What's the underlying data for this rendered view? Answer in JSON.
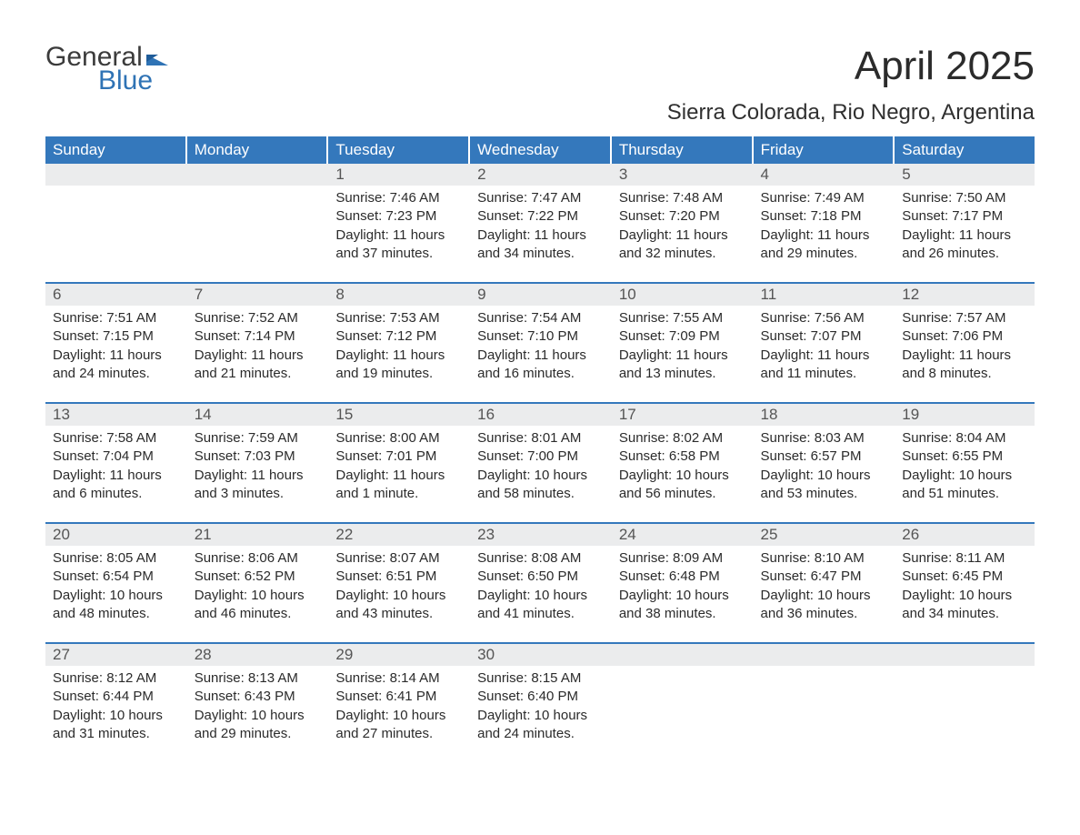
{
  "logo": {
    "line1": "General",
    "line2": "Blue"
  },
  "title": "April 2025",
  "location": "Sierra Colorada, Rio Negro, Argentina",
  "weekday_labels": [
    "Sunday",
    "Monday",
    "Tuesday",
    "Wednesday",
    "Thursday",
    "Friday",
    "Saturday"
  ],
  "colors": {
    "header_bg": "#3478bc",
    "header_text": "#ffffff",
    "daynum_bg": "#ebeced",
    "text": "#2b2b2b",
    "logo_grey": "#3b3b3b",
    "logo_blue": "#2f73b5",
    "page_bg": "#ffffff"
  },
  "weeks": [
    [
      {
        "n": "",
        "lines": [
          "",
          "",
          "",
          ""
        ]
      },
      {
        "n": "",
        "lines": [
          "",
          "",
          "",
          ""
        ]
      },
      {
        "n": "1",
        "lines": [
          "Sunrise: 7:46 AM",
          "Sunset: 7:23 PM",
          "Daylight: 11 hours",
          "and 37 minutes."
        ]
      },
      {
        "n": "2",
        "lines": [
          "Sunrise: 7:47 AM",
          "Sunset: 7:22 PM",
          "Daylight: 11 hours",
          "and 34 minutes."
        ]
      },
      {
        "n": "3",
        "lines": [
          "Sunrise: 7:48 AM",
          "Sunset: 7:20 PM",
          "Daylight: 11 hours",
          "and 32 minutes."
        ]
      },
      {
        "n": "4",
        "lines": [
          "Sunrise: 7:49 AM",
          "Sunset: 7:18 PM",
          "Daylight: 11 hours",
          "and 29 minutes."
        ]
      },
      {
        "n": "5",
        "lines": [
          "Sunrise: 7:50 AM",
          "Sunset: 7:17 PM",
          "Daylight: 11 hours",
          "and 26 minutes."
        ]
      }
    ],
    [
      {
        "n": "6",
        "lines": [
          "Sunrise: 7:51 AM",
          "Sunset: 7:15 PM",
          "Daylight: 11 hours",
          "and 24 minutes."
        ]
      },
      {
        "n": "7",
        "lines": [
          "Sunrise: 7:52 AM",
          "Sunset: 7:14 PM",
          "Daylight: 11 hours",
          "and 21 minutes."
        ]
      },
      {
        "n": "8",
        "lines": [
          "Sunrise: 7:53 AM",
          "Sunset: 7:12 PM",
          "Daylight: 11 hours",
          "and 19 minutes."
        ]
      },
      {
        "n": "9",
        "lines": [
          "Sunrise: 7:54 AM",
          "Sunset: 7:10 PM",
          "Daylight: 11 hours",
          "and 16 minutes."
        ]
      },
      {
        "n": "10",
        "lines": [
          "Sunrise: 7:55 AM",
          "Sunset: 7:09 PM",
          "Daylight: 11 hours",
          "and 13 minutes."
        ]
      },
      {
        "n": "11",
        "lines": [
          "Sunrise: 7:56 AM",
          "Sunset: 7:07 PM",
          "Daylight: 11 hours",
          "and 11 minutes."
        ]
      },
      {
        "n": "12",
        "lines": [
          "Sunrise: 7:57 AM",
          "Sunset: 7:06 PM",
          "Daylight: 11 hours",
          "and 8 minutes."
        ]
      }
    ],
    [
      {
        "n": "13",
        "lines": [
          "Sunrise: 7:58 AM",
          "Sunset: 7:04 PM",
          "Daylight: 11 hours",
          "and 6 minutes."
        ]
      },
      {
        "n": "14",
        "lines": [
          "Sunrise: 7:59 AM",
          "Sunset: 7:03 PM",
          "Daylight: 11 hours",
          "and 3 minutes."
        ]
      },
      {
        "n": "15",
        "lines": [
          "Sunrise: 8:00 AM",
          "Sunset: 7:01 PM",
          "Daylight: 11 hours",
          "and 1 minute."
        ]
      },
      {
        "n": "16",
        "lines": [
          "Sunrise: 8:01 AM",
          "Sunset: 7:00 PM",
          "Daylight: 10 hours",
          "and 58 minutes."
        ]
      },
      {
        "n": "17",
        "lines": [
          "Sunrise: 8:02 AM",
          "Sunset: 6:58 PM",
          "Daylight: 10 hours",
          "and 56 minutes."
        ]
      },
      {
        "n": "18",
        "lines": [
          "Sunrise: 8:03 AM",
          "Sunset: 6:57 PM",
          "Daylight: 10 hours",
          "and 53 minutes."
        ]
      },
      {
        "n": "19",
        "lines": [
          "Sunrise: 8:04 AM",
          "Sunset: 6:55 PM",
          "Daylight: 10 hours",
          "and 51 minutes."
        ]
      }
    ],
    [
      {
        "n": "20",
        "lines": [
          "Sunrise: 8:05 AM",
          "Sunset: 6:54 PM",
          "Daylight: 10 hours",
          "and 48 minutes."
        ]
      },
      {
        "n": "21",
        "lines": [
          "Sunrise: 8:06 AM",
          "Sunset: 6:52 PM",
          "Daylight: 10 hours",
          "and 46 minutes."
        ]
      },
      {
        "n": "22",
        "lines": [
          "Sunrise: 8:07 AM",
          "Sunset: 6:51 PM",
          "Daylight: 10 hours",
          "and 43 minutes."
        ]
      },
      {
        "n": "23",
        "lines": [
          "Sunrise: 8:08 AM",
          "Sunset: 6:50 PM",
          "Daylight: 10 hours",
          "and 41 minutes."
        ]
      },
      {
        "n": "24",
        "lines": [
          "Sunrise: 8:09 AM",
          "Sunset: 6:48 PM",
          "Daylight: 10 hours",
          "and 38 minutes."
        ]
      },
      {
        "n": "25",
        "lines": [
          "Sunrise: 8:10 AM",
          "Sunset: 6:47 PM",
          "Daylight: 10 hours",
          "and 36 minutes."
        ]
      },
      {
        "n": "26",
        "lines": [
          "Sunrise: 8:11 AM",
          "Sunset: 6:45 PM",
          "Daylight: 10 hours",
          "and 34 minutes."
        ]
      }
    ],
    [
      {
        "n": "27",
        "lines": [
          "Sunrise: 8:12 AM",
          "Sunset: 6:44 PM",
          "Daylight: 10 hours",
          "and 31 minutes."
        ]
      },
      {
        "n": "28",
        "lines": [
          "Sunrise: 8:13 AM",
          "Sunset: 6:43 PM",
          "Daylight: 10 hours",
          "and 29 minutes."
        ]
      },
      {
        "n": "29",
        "lines": [
          "Sunrise: 8:14 AM",
          "Sunset: 6:41 PM",
          "Daylight: 10 hours",
          "and 27 minutes."
        ]
      },
      {
        "n": "30",
        "lines": [
          "Sunrise: 8:15 AM",
          "Sunset: 6:40 PM",
          "Daylight: 10 hours",
          "and 24 minutes."
        ]
      },
      {
        "n": "",
        "lines": [
          "",
          "",
          "",
          ""
        ]
      },
      {
        "n": "",
        "lines": [
          "",
          "",
          "",
          ""
        ]
      },
      {
        "n": "",
        "lines": [
          "",
          "",
          "",
          ""
        ]
      }
    ]
  ]
}
